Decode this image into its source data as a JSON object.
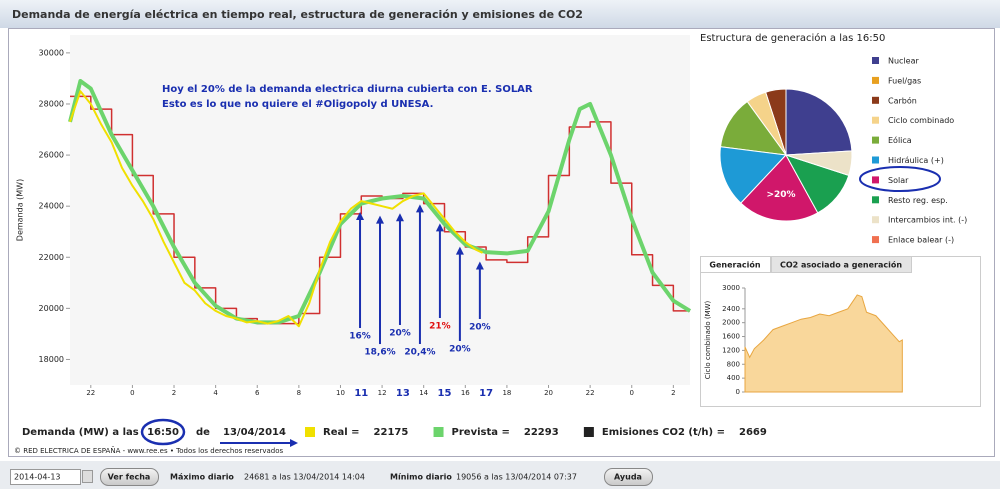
{
  "title": "Demanda de energía eléctrica en tiempo real, estructura de generación y emisiones de CO2",
  "chart_data": [
    {
      "type": "line",
      "y_label": "Demanda (MW)",
      "xlim": [
        -3,
        26.8
      ],
      "xticks": [
        {
          "value": -2,
          "label": "22"
        },
        0,
        2,
        4,
        6,
        8,
        10,
        12,
        14,
        16,
        18,
        20,
        22,
        {
          "value": 24,
          "label": "0"
        },
        {
          "value": 26,
          "label": "2"
        }
      ],
      "ylim": [
        17000,
        30700
      ],
      "yticks": [
        18000,
        20000,
        22000,
        24000,
        26000,
        28000,
        30000
      ],
      "grid": false,
      "series": [
        {
          "color": "#d03030",
          "step": true,
          "x": [
            -3,
            -2,
            -1,
            0,
            1,
            2,
            3,
            4,
            5,
            6,
            7,
            8,
            9,
            10,
            11,
            12,
            13,
            14,
            15,
            16,
            17,
            18,
            19,
            20,
            21,
            22,
            23,
            24,
            25,
            26
          ],
          "values": [
            28300,
            27800,
            26800,
            25200,
            23700,
            22000,
            20800,
            20000,
            19600,
            19400,
            19400,
            19800,
            22000,
            23700,
            24400,
            24300,
            24500,
            24100,
            23000,
            22400,
            21900,
            21800,
            22800,
            25200,
            27100,
            27300,
            24900,
            22100,
            20900,
            19900
          ]
        },
        {
          "color": "#6cd46c",
          "width": 4,
          "x": [
            -3,
            -2.5,
            -2,
            -1,
            0,
            1,
            2,
            3,
            4,
            5,
            6,
            7,
            8,
            9,
            10,
            11,
            12,
            13,
            14,
            15,
            16,
            17,
            18,
            19,
            20,
            21,
            21.5,
            22,
            23,
            24,
            25,
            26,
            26.8
          ],
          "values": [
            27300,
            28900,
            28600,
            26800,
            25400,
            24000,
            22400,
            21000,
            20100,
            19600,
            19450,
            19450,
            19700,
            21400,
            23300,
            24100,
            24300,
            24400,
            24300,
            23300,
            22500,
            22200,
            22150,
            22250,
            23800,
            26600,
            27800,
            28000,
            26000,
            23500,
            21400,
            20300,
            19900
          ]
        },
        {
          "color": "#f0e000",
          "width": 2,
          "x": [
            -3,
            -2.5,
            -2,
            -1.5,
            -1,
            -0.5,
            0,
            0.5,
            1,
            1.5,
            2,
            2.5,
            3,
            3.5,
            4,
            4.5,
            5,
            5.5,
            6,
            6.5,
            7,
            7.5,
            8,
            8.5,
            9,
            9.5,
            10,
            10.5,
            11,
            11.5,
            12,
            12.5,
            13,
            13.5,
            14,
            14.5,
            15,
            15.5,
            16,
            16.5,
            16.83
          ],
          "values": [
            27300,
            28500,
            28000,
            27200,
            26500,
            25500,
            24800,
            24200,
            23500,
            22600,
            21800,
            21000,
            20700,
            20200,
            19900,
            19700,
            19600,
            19450,
            19500,
            19400,
            19500,
            19700,
            19300,
            20200,
            21500,
            22600,
            23400,
            23900,
            24200,
            24100,
            24000,
            23900,
            24200,
            24400,
            24500,
            24000,
            23500,
            23000,
            22600,
            22300,
            22175
          ]
        }
      ],
      "annotations": [
        {
          "text": "Hoy el 20% de la demanda electrica diurna cubierta con E. SOLAR"
        },
        {
          "text": "Esto es lo que no quiere el #Oligopoly d UNESA."
        }
      ],
      "arrow_labels": [
        {
          "text": "16%",
          "x": 10.94,
          "y": 18918
        },
        {
          "text": "18,6%",
          "x": 11.9,
          "y": 18290
        },
        {
          "text": "20%",
          "x": 12.86,
          "y": 19035
        },
        {
          "text": "20,4%",
          "x": 13.82,
          "y": 18290
        },
        {
          "text": "21%",
          "x": 14.78,
          "y": 19310,
          "color": "#e01010"
        },
        {
          "text": "20%",
          "x": 15.74,
          "y": 18410
        },
        {
          "text": "20%",
          "x": 16.7,
          "y": 19270
        }
      ],
      "hour_marks": [
        {
          "value": 11,
          "label": "11"
        },
        {
          "value": 13,
          "label": "13"
        },
        {
          "value": 15,
          "label": "15"
        },
        {
          "value": 17,
          "label": "17"
        }
      ]
    },
    {
      "type": "pie",
      "title": "Estructura de generación a las 16:50",
      "categories": [
        "Nuclear",
        "Fuel/gas",
        "Carbón",
        "Ciclo combinado",
        "Eólica",
        "Hidráulica (+)",
        "Solar",
        "Resto reg. esp.",
        "Intercambios int. (-)",
        "Enlace balear (-)"
      ],
      "values": [
        24,
        0,
        5,
        5,
        13,
        15,
        20,
        12,
        6,
        0
      ],
      "colors": [
        "#3f3f8f",
        "#e8a020",
        "#8b3a1a",
        "#f5d38a",
        "#7aac3a",
        "#1e9ad6",
        "#d0176a",
        "#1aa050",
        "#ece2c8",
        "#f07050"
      ],
      "slice_label": ">20%"
    },
    {
      "type": "area",
      "tabs": [
        "Generación",
        "CO2 asociado a generación"
      ],
      "y_label": "Ciclo combinado (MW)",
      "color": "#f7c97a",
      "xlim": [
        0,
        23
      ],
      "ylim": [
        0,
        3000
      ],
      "yticks": [
        0,
        400,
        800,
        1200,
        1600,
        2000,
        2400,
        3000
      ],
      "x": [
        0,
        0.5,
        1,
        2,
        3,
        4,
        5,
        6,
        7,
        8,
        9,
        10,
        11,
        12,
        12.5,
        13,
        14,
        15,
        16,
        16.5,
        16.83
      ],
      "values": [
        1300,
        1000,
        1250,
        1500,
        1800,
        1900,
        2000,
        2100,
        2150,
        2250,
        2200,
        2300,
        2400,
        2800,
        2750,
        2300,
        2200,
        1900,
        1600,
        1450,
        1500
      ]
    }
  ],
  "status": {
    "label": "Demanda (MW) a las",
    "time": "16:50",
    "de": "de",
    "date": "13/04/2014",
    "items": [
      {
        "label": "Real =",
        "value": "22175"
      },
      {
        "label": "Prevista =",
        "value": "22293"
      },
      {
        "label": "Emisiones CO2 (t/h) =",
        "value": "2669"
      }
    ]
  },
  "copyright": "© RED ELECTRICA DE ESPAÑA - www.ree.es • Todos los derechos reservados",
  "toolbar": {
    "date_input": "2014-04-13",
    "button": "Ver fecha",
    "max_label": "Máximo diario",
    "max_value": "24681 a las 13/04/2014 14:04",
    "min_label": "Mínimo diario",
    "min_value": "19056 a las 13/04/2014 07:37",
    "help": "Ayuda"
  }
}
